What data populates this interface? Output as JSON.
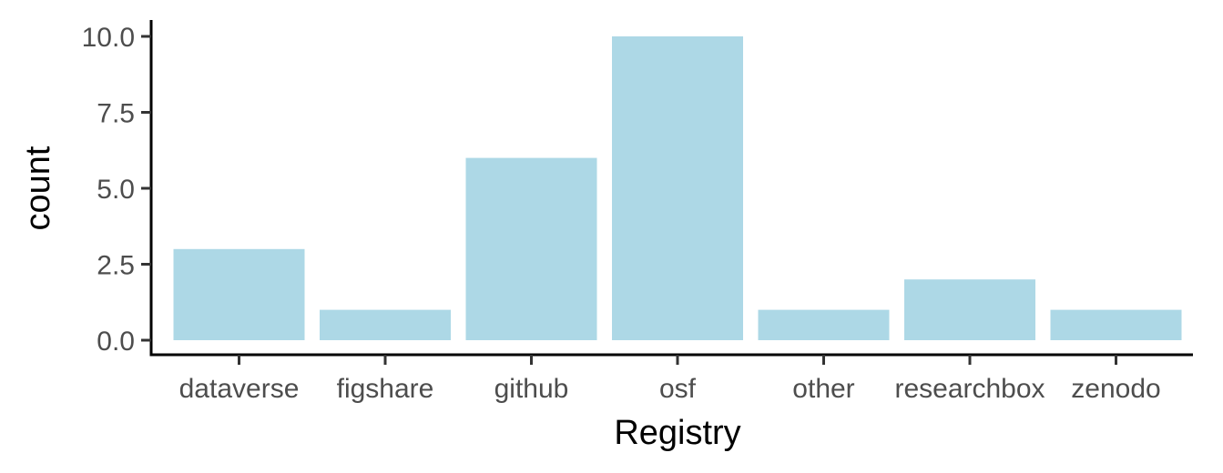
{
  "chart_data": {
    "type": "bar",
    "title": "",
    "xlabel": "Registry",
    "ylabel": "count",
    "categories": [
      "dataverse",
      "figshare",
      "github",
      "osf",
      "other",
      "researchbox",
      "zenodo"
    ],
    "values": [
      3,
      1,
      6,
      10,
      1,
      2,
      1
    ],
    "ylim": [
      0,
      10
    ],
    "yticks": [
      "0.0",
      "2.5",
      "5.0",
      "7.5",
      "10.0"
    ],
    "grid": false,
    "legend": "none",
    "bar_color": "#add8e6",
    "axis_color": "#000000",
    "tick_label_color": "#4d4d4d"
  }
}
